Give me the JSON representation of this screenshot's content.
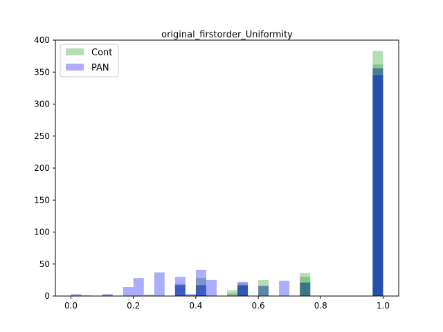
{
  "chart_data": {
    "type": "bar",
    "title": "original_firstorder_Uniformity",
    "xlabel": "",
    "ylabel": "",
    "xlim": [
      -0.05,
      1.05
    ],
    "ylim": [
      0,
      400
    ],
    "x_ticks": [
      "0.0",
      "0.2",
      "0.4",
      "0.6",
      "0.8",
      "1.0"
    ],
    "y_ticks": [
      "0",
      "50",
      "100",
      "150",
      "200",
      "250",
      "300",
      "350",
      "400"
    ],
    "legend": {
      "position": "top-left"
    },
    "histogram_bin_width": 0.0333,
    "series": [
      {
        "name": "Cont",
        "color": "#2ca02c",
        "alpha": 0.35,
        "layers": [
          {
            "bins": [
              {
                "x": 0.0167,
                "height": 1
              },
              {
                "x": 0.1167,
                "height": 2
              },
              {
                "x": 0.3833,
                "height": 2
              },
              {
                "x": 0.4167,
                "height": 2
              },
              {
                "x": 0.55,
                "height": 16
              },
              {
                "x": 0.75,
                "height": 21
              },
              {
                "x": 0.9833,
                "height": 346
              }
            ]
          },
          {
            "bins": [
              {
                "x": 0.35,
                "height": 17
              },
              {
                "x": 0.4167,
                "height": 17
              },
              {
                "x": 0.5167,
                "height": 4
              },
              {
                "x": 0.55,
                "height": 16
              },
              {
                "x": 0.6167,
                "height": 16
              },
              {
                "x": 0.75,
                "height": 21
              },
              {
                "x": 0.9833,
                "height": 356
              }
            ]
          },
          {
            "bins": [
              {
                "x": 0.35,
                "height": 19
              },
              {
                "x": 0.4167,
                "height": 28
              },
              {
                "x": 0.5167,
                "height": 9
              },
              {
                "x": 0.55,
                "height": 20
              },
              {
                "x": 0.6167,
                "height": 25
              },
              {
                "x": 0.75,
                "height": 30
              },
              {
                "x": 0.9833,
                "height": 362
              }
            ]
          },
          {
            "bins": [
              {
                "x": 0.75,
                "height": 36
              },
              {
                "x": 0.9833,
                "height": 383
              }
            ]
          }
        ]
      },
      {
        "name": "PAN",
        "color": "#0000ff",
        "alpha": 0.32,
        "layers": [
          {
            "bins": [
              {
                "x": 0.0167,
                "height": 3
              },
              {
                "x": 0.05,
                "height": 1
              },
              {
                "x": 0.1167,
                "height": 3
              },
              {
                "x": 0.1833,
                "height": 14
              },
              {
                "x": 0.2167,
                "height": 28
              },
              {
                "x": 0.25,
                "height": 2
              },
              {
                "x": 0.2833,
                "height": 37
              },
              {
                "x": 0.35,
                "height": 30
              },
              {
                "x": 0.3833,
                "height": 3
              },
              {
                "x": 0.4167,
                "height": 41
              },
              {
                "x": 0.45,
                "height": 25
              },
              {
                "x": 0.55,
                "height": 22
              },
              {
                "x": 0.6833,
                "height": 24
              },
              {
                "x": 0.75,
                "height": 21
              },
              {
                "x": 0.9833,
                "height": 356
              }
            ]
          },
          {
            "bins": [
              {
                "x": 0.35,
                "height": 17
              },
              {
                "x": 0.4167,
                "height": 17
              },
              {
                "x": 0.55,
                "height": 17
              },
              {
                "x": 0.6167,
                "height": 16
              },
              {
                "x": 0.9833,
                "height": 345
              }
            ]
          }
        ]
      }
    ]
  }
}
